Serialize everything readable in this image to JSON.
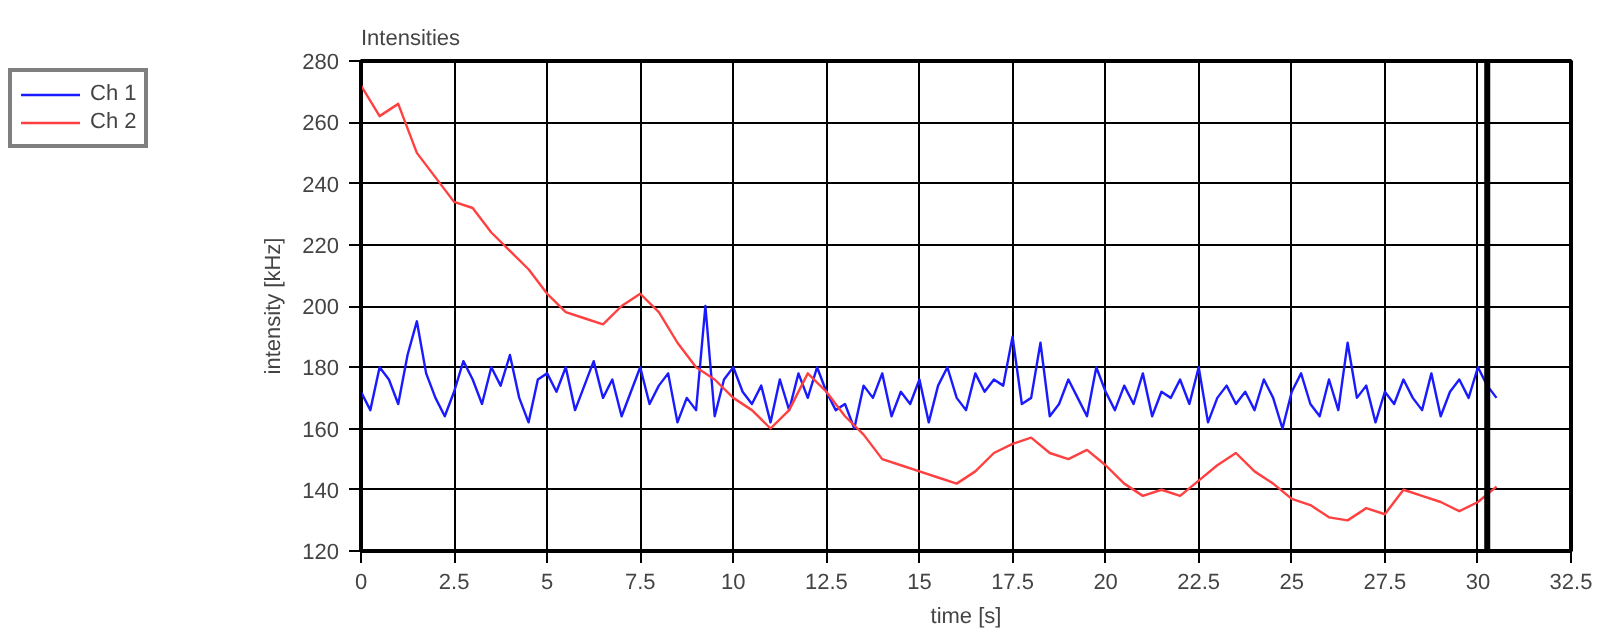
{
  "chart_data": {
    "type": "line",
    "title": "Intensities",
    "xlabel": "time [s]",
    "ylabel": "intensity [kHz]",
    "x": [
      0,
      0.25,
      0.5,
      0.75,
      1,
      1.25,
      1.5,
      1.75,
      2,
      2.25,
      2.5,
      2.75,
      3,
      3.25,
      3.5,
      3.75,
      4,
      4.25,
      4.5,
      4.75,
      5,
      5.25,
      5.5,
      5.75,
      6,
      6.25,
      6.5,
      6.75,
      7,
      7.25,
      7.5,
      7.75,
      8,
      8.25,
      8.5,
      8.75,
      9,
      9.25,
      9.5,
      9.75,
      10,
      10.25,
      10.5,
      10.75,
      11,
      11.25,
      11.5,
      11.75,
      12,
      12.25,
      12.5,
      12.75,
      13,
      13.25,
      13.5,
      13.75,
      14,
      14.25,
      14.5,
      14.75,
      15,
      15.25,
      15.5,
      15.75,
      16,
      16.25,
      16.5,
      16.75,
      17,
      17.25,
      17.5,
      17.75,
      18,
      18.25,
      18.5,
      18.75,
      19,
      19.25,
      19.5,
      19.75,
      20,
      20.25,
      20.5,
      20.75,
      21,
      21.25,
      21.5,
      21.75,
      22,
      22.25,
      22.5,
      22.75,
      23,
      23.25,
      23.5,
      23.75,
      24,
      24.25,
      24.5,
      24.75,
      25,
      25.25,
      25.5,
      25.75,
      26,
      26.25,
      26.5,
      26.75,
      27,
      27.25,
      27.5,
      27.75,
      28,
      28.25,
      28.5,
      28.75,
      29,
      29.25,
      29.5,
      29.75,
      30,
      30.25,
      30.5
    ],
    "series": [
      {
        "name": "Ch 1",
        "color": "#1a1aff",
        "values": [
          172,
          166,
          180,
          176,
          168,
          184,
          195,
          178,
          170,
          164,
          172,
          182,
          176,
          168,
          180,
          174,
          184,
          170,
          162,
          176,
          178,
          172,
          180,
          166,
          174,
          182,
          170,
          176,
          164,
          172,
          180,
          168,
          174,
          178,
          162,
          170,
          166,
          200,
          164,
          176,
          180,
          172,
          168,
          174,
          162,
          176,
          166,
          178,
          170,
          180,
          172,
          166,
          168,
          160,
          174,
          170,
          178,
          164,
          172,
          168,
          176,
          162,
          174,
          180,
          170,
          166,
          178,
          172,
          176,
          174,
          190,
          168,
          170,
          188,
          164,
          168,
          176,
          170,
          164,
          180,
          172,
          166,
          174,
          168,
          178,
          164,
          172,
          170,
          176,
          168,
          180,
          162,
          170,
          174,
          168,
          172,
          166,
          176,
          170,
          160,
          172,
          178,
          168,
          164,
          176,
          166,
          188,
          170,
          174,
          162,
          172,
          168,
          176,
          170,
          166,
          178,
          164,
          172,
          176,
          170,
          180,
          174,
          170
        ]
      },
      {
        "name": "Ch 2",
        "color": "#ff4040",
        "x": [
          0,
          0.5,
          1,
          1.5,
          2,
          2.5,
          3,
          3.5,
          4,
          4.5,
          5,
          5.5,
          6,
          6.5,
          7,
          7.5,
          8,
          8.5,
          9,
          9.5,
          10,
          10.5,
          11,
          11.5,
          12,
          12.5,
          13,
          13.5,
          14,
          14.5,
          15,
          15.5,
          16,
          16.5,
          17,
          17.5,
          18,
          18.5,
          19,
          19.5,
          20,
          20.5,
          21,
          21.5,
          22,
          22.5,
          23,
          23.5,
          24,
          24.5,
          25,
          25.5,
          26,
          26.5,
          27,
          27.5,
          28,
          28.5,
          29,
          29.5,
          30,
          30.5
        ],
        "values": [
          272,
          262,
          266,
          250,
          242,
          234,
          232,
          224,
          218,
          212,
          204,
          198,
          196,
          194,
          200,
          204,
          198,
          188,
          180,
          176,
          170,
          166,
          160,
          166,
          178,
          172,
          164,
          158,
          150,
          148,
          146,
          144,
          142,
          146,
          152,
          155,
          157,
          152,
          150,
          153,
          148,
          142,
          138,
          140,
          138,
          143,
          148,
          152,
          146,
          142,
          137,
          135,
          131,
          130,
          134,
          132,
          140,
          138,
          136,
          133,
          136,
          141
        ]
      }
    ],
    "xlim": [
      0,
      32.5
    ],
    "ylim": [
      120,
      280
    ],
    "xticks": [
      0,
      2.5,
      5,
      7.5,
      10,
      12.5,
      15,
      17.5,
      20,
      22.5,
      25,
      27.5,
      30,
      32.5
    ],
    "yticks": [
      120,
      140,
      160,
      180,
      200,
      220,
      240,
      260,
      280
    ],
    "ref_lines": [
      {
        "axis": "x",
        "value": 30.25,
        "color": "#000000"
      }
    ],
    "grid": true,
    "legend": "top left",
    "line_style": "solid"
  }
}
